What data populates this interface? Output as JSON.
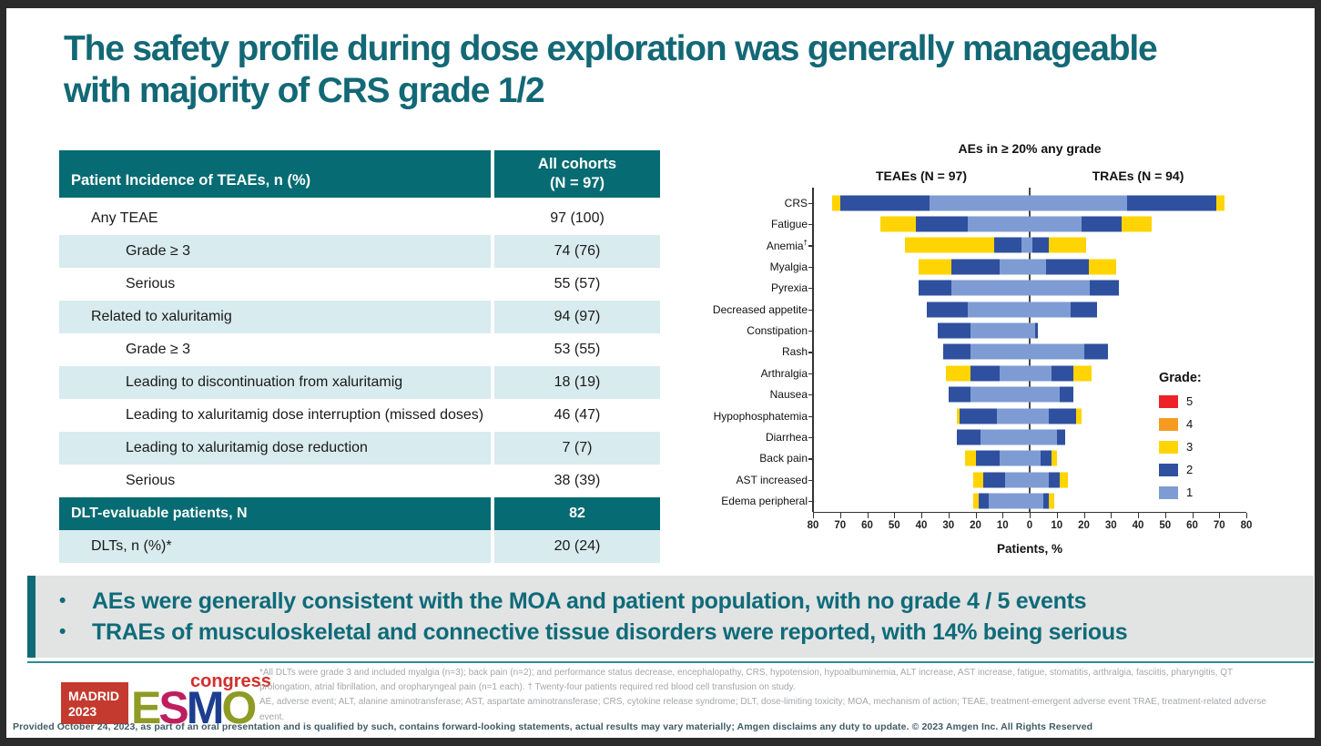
{
  "slide": {
    "title": "The safety profile during dose exploration was generally manageable with majority of CRS grade 1/2",
    "accent_teal": "#0E6B76"
  },
  "table": {
    "header_col1": "Patient Incidence of TEAEs, n (%)",
    "header_col2_line1": "All cohorts",
    "header_col2_line2": "(N = 97)",
    "rows": [
      {
        "label": "Any TEAE",
        "value": "97 (100)",
        "indent": 1,
        "style": "white"
      },
      {
        "label": "Grade ≥ 3",
        "value": "74 (76)",
        "indent": 2,
        "style": "shaded"
      },
      {
        "label": "Serious",
        "value": "55 (57)",
        "indent": 2,
        "style": "white"
      },
      {
        "label": "Related to xaluritamig",
        "value": "94 (97)",
        "indent": 1,
        "style": "shaded"
      },
      {
        "label": "Grade ≥ 3",
        "value": "53 (55)",
        "indent": 2,
        "style": "white"
      },
      {
        "label": "Leading to discontinuation from xaluritamig",
        "value": "18 (19)",
        "indent": 2,
        "style": "shaded"
      },
      {
        "label": "Leading to xaluritamig dose interruption (missed doses)",
        "value": "46 (47)",
        "indent": 2,
        "style": "white"
      },
      {
        "label": "Leading to xaluritamig dose reduction",
        "value": "7 (7)",
        "indent": 2,
        "style": "shaded"
      },
      {
        "label": "Serious",
        "value": "38 (39)",
        "indent": 2,
        "style": "white"
      },
      {
        "label": "DLT-evaluable patients, N",
        "value": "82",
        "indent": 0,
        "style": "dark"
      },
      {
        "label": "DLTs, n (%)*",
        "value": "20 (24)",
        "indent": 1,
        "style": "shaded"
      }
    ]
  },
  "chart_data": {
    "type": "bar",
    "subtype": "diverging-stacked-butterfly",
    "title": "AEs in ≥ 20% any grade",
    "xlabel": "Patients, %",
    "left_header": "TEAEs (N = 97)",
    "right_header": "TRAEs (N = 94)",
    "axis_ticks": [
      "80",
      "70",
      "60",
      "50",
      "40",
      "30",
      "20",
      "10",
      "0",
      "10",
      "20",
      "30",
      "40",
      "50",
      "60",
      "70",
      "80"
    ],
    "xlim_each_side": 80,
    "grid": false,
    "categories": [
      "CRS",
      "Fatigue",
      "Anemia†",
      "Myalgia",
      "Pyrexia",
      "Decreased appetite",
      "Constipation",
      "Rash",
      "Arthralgia",
      "Nausea",
      "Hypophosphatemia",
      "Diarrhea",
      "Back pain",
      "AST increased",
      "Edema peripheral"
    ],
    "grade_order_from_center": [
      "1",
      "2",
      "3"
    ],
    "grade_colors": {
      "1": "#7E9CD3",
      "2": "#2F509E",
      "3": "#FFD402",
      "4": "#F59B20",
      "5": "#EC2227"
    },
    "series": [
      {
        "name": "TEAEs (N = 97)",
        "side": "left",
        "grade1_pct": [
          37,
          23,
          3,
          11,
          29,
          23,
          22,
          22,
          11,
          22,
          12,
          18,
          11,
          9,
          15
        ],
        "grade2_pct": [
          33,
          19,
          10,
          18,
          12,
          15,
          12,
          10,
          11,
          8,
          14,
          9,
          9,
          8,
          4
        ],
        "grade3_pct": [
          3,
          13,
          33,
          12,
          0,
          0,
          0,
          0,
          9,
          0,
          1,
          0,
          4,
          4,
          2
        ]
      },
      {
        "name": "TRAEs (N = 94)",
        "side": "right",
        "grade1_pct": [
          36,
          19,
          1,
          6,
          22,
          15,
          2,
          20,
          8,
          11,
          7,
          10,
          4,
          7,
          5
        ],
        "grade2_pct": [
          33,
          15,
          6,
          16,
          11,
          10,
          1,
          9,
          8,
          5,
          10,
          3,
          4,
          4,
          2
        ],
        "grade3_pct": [
          3,
          11,
          14,
          10,
          0,
          0,
          0,
          0,
          7,
          0,
          2,
          0,
          2,
          3,
          2
        ]
      }
    ],
    "legend": {
      "title": "Grade:",
      "position": "right",
      "items": [
        {
          "label": "5",
          "color": "#EC2227"
        },
        {
          "label": "4",
          "color": "#F59B20"
        },
        {
          "label": "3",
          "color": "#FFD402"
        },
        {
          "label": "2",
          "color": "#2F509E"
        },
        {
          "label": "1",
          "color": "#7E9CD3"
        }
      ]
    }
  },
  "bullets": {
    "marker": "•",
    "items": [
      "AEs were generally consistent with the MOA and patient population, with no grade 4 / 5 events",
      "TRAEs of musculoskeletal and connective tissue disorders were reported, with 14% being serious"
    ]
  },
  "footer": {
    "logo": {
      "city": "MADRID",
      "year": "2023",
      "box_color": "#C53A2F",
      "letters": [
        {
          "ch": "E",
          "color": "#8E9B24"
        },
        {
          "ch": "S",
          "color": "#BE1E5E"
        },
        {
          "ch": "M",
          "color": "#1D3E90"
        },
        {
          "ch": "O",
          "color": "#8E9B24"
        }
      ],
      "congress": "congress",
      "congress_color": "#D0302C"
    },
    "footnote1": "*All DLTs were grade 3 and included myalgia (n=3); back pain (n=2); and performance status decrease, encephalopathy, CRS, hypotension, hypoalbuminemia, ALT increase, AST increase, fatigue, stomatitis, arthralgia, fasciitis, pharyngitis, QT prolongation, atrial fibrillation, and oropharyngeal pain (n=1 each). † Twenty-four patients required red blood cell transfusion on study.",
    "footnote2": "AE, adverse event; ALT, alanine aminotransferase; AST, aspartate aminotransferase; CRS, cytokine release syndrome; DLT, dose-limiting toxicity; MOA, mechanism of action; TEAE, treatment-emergent adverse event TRAE, treatment-related adverse event.",
    "provided_line": "Provided October 24, 2023, as part of an oral presentation and is qualified by such, contains forward-looking statements, actual results may vary materially; Amgen disclaims any duty to update. © 2023 Amgen Inc. All Rights Reserved"
  }
}
